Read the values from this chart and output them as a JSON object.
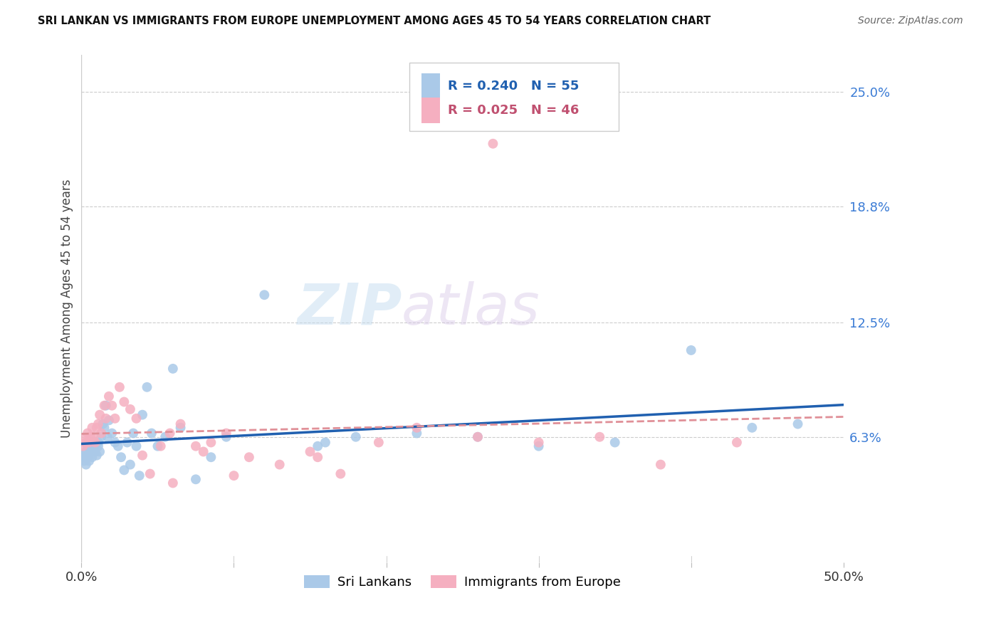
{
  "title": "SRI LANKAN VS IMMIGRANTS FROM EUROPE UNEMPLOYMENT AMONG AGES 45 TO 54 YEARS CORRELATION CHART",
  "source": "Source: ZipAtlas.com",
  "ylabel": "Unemployment Among Ages 45 to 54 years",
  "xlim": [
    0.0,
    0.5
  ],
  "ylim": [
    -0.005,
    0.27
  ],
  "yticks": [
    0.063,
    0.125,
    0.188,
    0.25
  ],
  "ytick_labels": [
    "6.3%",
    "12.5%",
    "18.8%",
    "25.0%"
  ],
  "xticks": [
    0.0,
    0.1,
    0.2,
    0.3,
    0.4,
    0.5
  ],
  "xtick_labels": [
    "0.0%",
    "",
    "",
    "",
    "",
    "50.0%"
  ],
  "sri_lanka_color": "#aac9e8",
  "europe_color": "#f5afc0",
  "sri_lanka_line_color": "#2060b0",
  "europe_line_color": "#e09098",
  "legend_sub_1": "Sri Lankans",
  "legend_sub_2": "Immigrants from Europe",
  "watermark_zip": "ZIP",
  "watermark_atlas": "atlas",
  "sri_lankans_x": [
    0.001,
    0.002,
    0.002,
    0.003,
    0.003,
    0.004,
    0.004,
    0.005,
    0.005,
    0.006,
    0.007,
    0.008,
    0.008,
    0.009,
    0.01,
    0.011,
    0.011,
    0.012,
    0.013,
    0.014,
    0.015,
    0.016,
    0.017,
    0.018,
    0.02,
    0.022,
    0.024,
    0.026,
    0.028,
    0.03,
    0.032,
    0.034,
    0.036,
    0.038,
    0.04,
    0.043,
    0.046,
    0.05,
    0.055,
    0.06,
    0.065,
    0.075,
    0.085,
    0.095,
    0.12,
    0.155,
    0.16,
    0.18,
    0.22,
    0.26,
    0.3,
    0.35,
    0.4,
    0.44,
    0.47
  ],
  "sri_lankans_y": [
    0.053,
    0.05,
    0.052,
    0.055,
    0.048,
    0.052,
    0.058,
    0.054,
    0.05,
    0.055,
    0.052,
    0.057,
    0.06,
    0.055,
    0.053,
    0.06,
    0.058,
    0.055,
    0.063,
    0.07,
    0.068,
    0.08,
    0.063,
    0.072,
    0.065,
    0.06,
    0.058,
    0.052,
    0.045,
    0.06,
    0.048,
    0.065,
    0.058,
    0.042,
    0.075,
    0.09,
    0.065,
    0.058,
    0.063,
    0.1,
    0.068,
    0.04,
    0.052,
    0.063,
    0.14,
    0.058,
    0.06,
    0.063,
    0.065,
    0.063,
    0.058,
    0.06,
    0.11,
    0.068,
    0.07
  ],
  "europe_x": [
    0.001,
    0.002,
    0.003,
    0.004,
    0.005,
    0.006,
    0.007,
    0.008,
    0.009,
    0.01,
    0.011,
    0.012,
    0.013,
    0.015,
    0.016,
    0.018,
    0.02,
    0.022,
    0.025,
    0.028,
    0.032,
    0.036,
    0.04,
    0.045,
    0.052,
    0.058,
    0.065,
    0.075,
    0.085,
    0.095,
    0.11,
    0.13,
    0.15,
    0.17,
    0.195,
    0.22,
    0.26,
    0.3,
    0.34,
    0.38,
    0.27,
    0.155,
    0.1,
    0.43,
    0.06,
    0.08
  ],
  "europe_y": [
    0.058,
    0.062,
    0.06,
    0.065,
    0.06,
    0.063,
    0.068,
    0.063,
    0.06,
    0.068,
    0.07,
    0.075,
    0.065,
    0.08,
    0.073,
    0.085,
    0.08,
    0.073,
    0.09,
    0.082,
    0.078,
    0.073,
    0.053,
    0.043,
    0.058,
    0.065,
    0.07,
    0.058,
    0.06,
    0.065,
    0.052,
    0.048,
    0.055,
    0.043,
    0.06,
    0.068,
    0.063,
    0.06,
    0.063,
    0.048,
    0.222,
    0.052,
    0.042,
    0.06,
    0.038,
    0.055
  ],
  "sl_line_start_y": 0.05,
  "sl_line_end_y": 0.08,
  "eu_line_start_y": 0.065,
  "eu_line_end_y": 0.063
}
